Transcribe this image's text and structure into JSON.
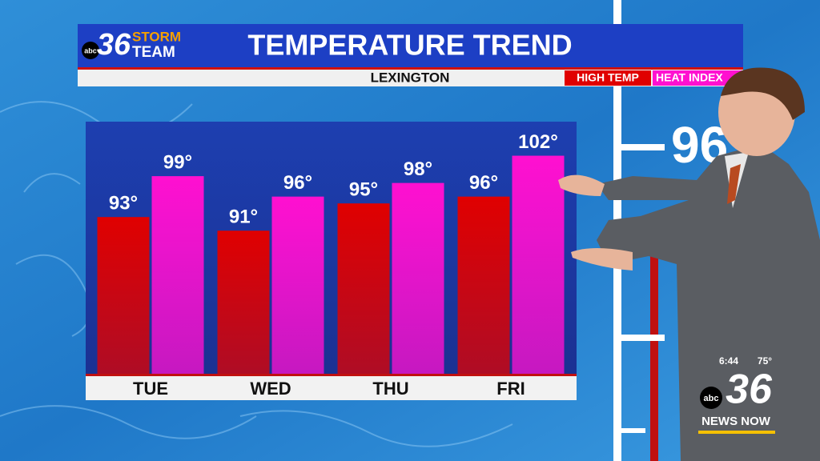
{
  "branding": {
    "network": "abc",
    "channel": "36",
    "team_line1": "STORM",
    "team_line2": "TEAM"
  },
  "backdrop_label": "96",
  "bug": {
    "time": "6:44",
    "temperature": "75°",
    "network": "abc",
    "channel": "36",
    "show": "NEWS NOW"
  },
  "chart_data": {
    "type": "bar",
    "title": "TEMPERATURE TREND",
    "subtitle": "LEXINGTON",
    "categories": [
      "TUE",
      "WED",
      "THU",
      "FRI"
    ],
    "series": [
      {
        "name": "HIGH TEMP",
        "color": "#e00000",
        "values": [
          93,
          91,
          95,
          96
        ],
        "value_labels": [
          "93°",
          "91°",
          "95°",
          "96°"
        ]
      },
      {
        "name": "HEAT INDEX",
        "color": "#ff10d0",
        "values": [
          99,
          96,
          98,
          102
        ],
        "value_labels": [
          "99°",
          "96°",
          "98°",
          "102°"
        ]
      }
    ],
    "ylim": [
      70,
      107
    ]
  }
}
